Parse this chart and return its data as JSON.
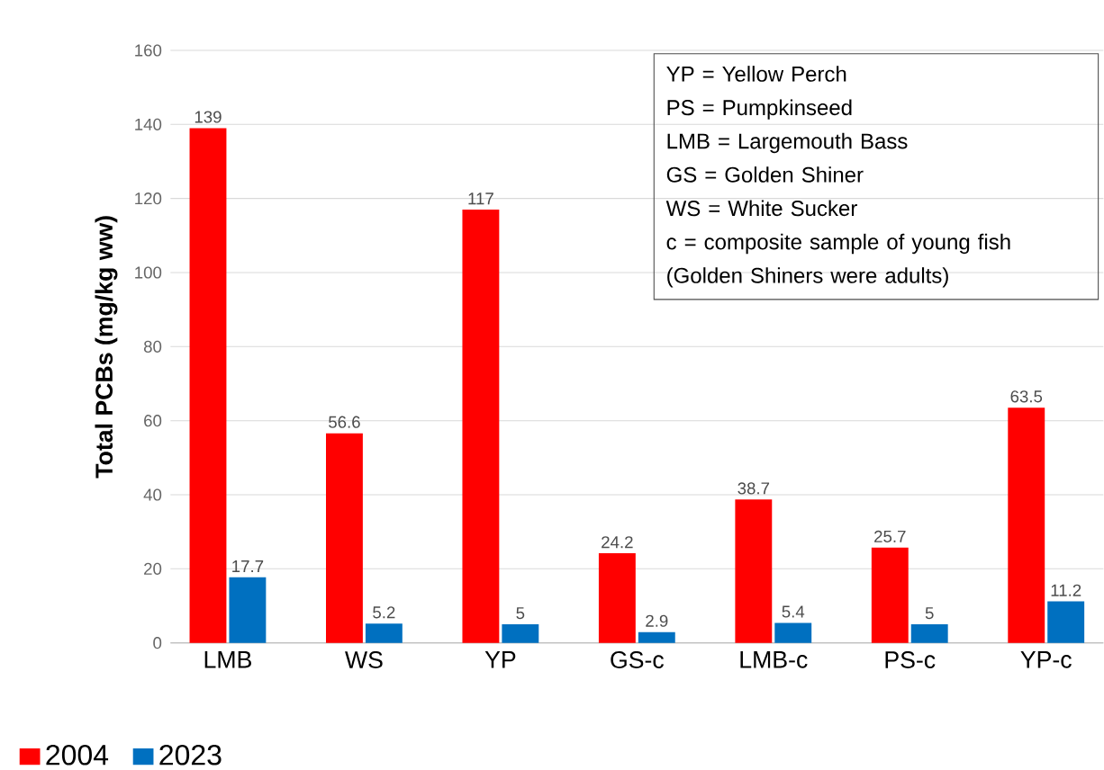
{
  "chart_data": {
    "type": "bar",
    "ylabel": "Total PCBs (mg/kg ww)",
    "categories": [
      "LMB",
      "WS",
      "YP",
      "GS-c",
      "LMB-c",
      "PS-c",
      "YP-c"
    ],
    "series": [
      {
        "name": "2004",
        "color": "#ff0000",
        "values": [
          139,
          56.6,
          117,
          24.2,
          38.7,
          25.7,
          63.5
        ]
      },
      {
        "name": "2023",
        "color": "#0070c0",
        "values": [
          17.7,
          5.2,
          5,
          2.9,
          5.4,
          5,
          11.2
        ]
      }
    ],
    "ylim": [
      0,
      160
    ],
    "yticks": [
      0,
      20,
      40,
      60,
      80,
      100,
      120,
      140,
      160
    ],
    "grid": "y",
    "legend": "bottom left",
    "data_labels": true,
    "annotations": [
      "YP = Yellow Perch",
      "PS = Pumpkinseed",
      "LMB = Largemouth Bass",
      "GS = Golden Shiner",
      "WS = White Sucker",
      "c = composite sample of young fish",
      "(Golden Shiners were adults)"
    ]
  }
}
